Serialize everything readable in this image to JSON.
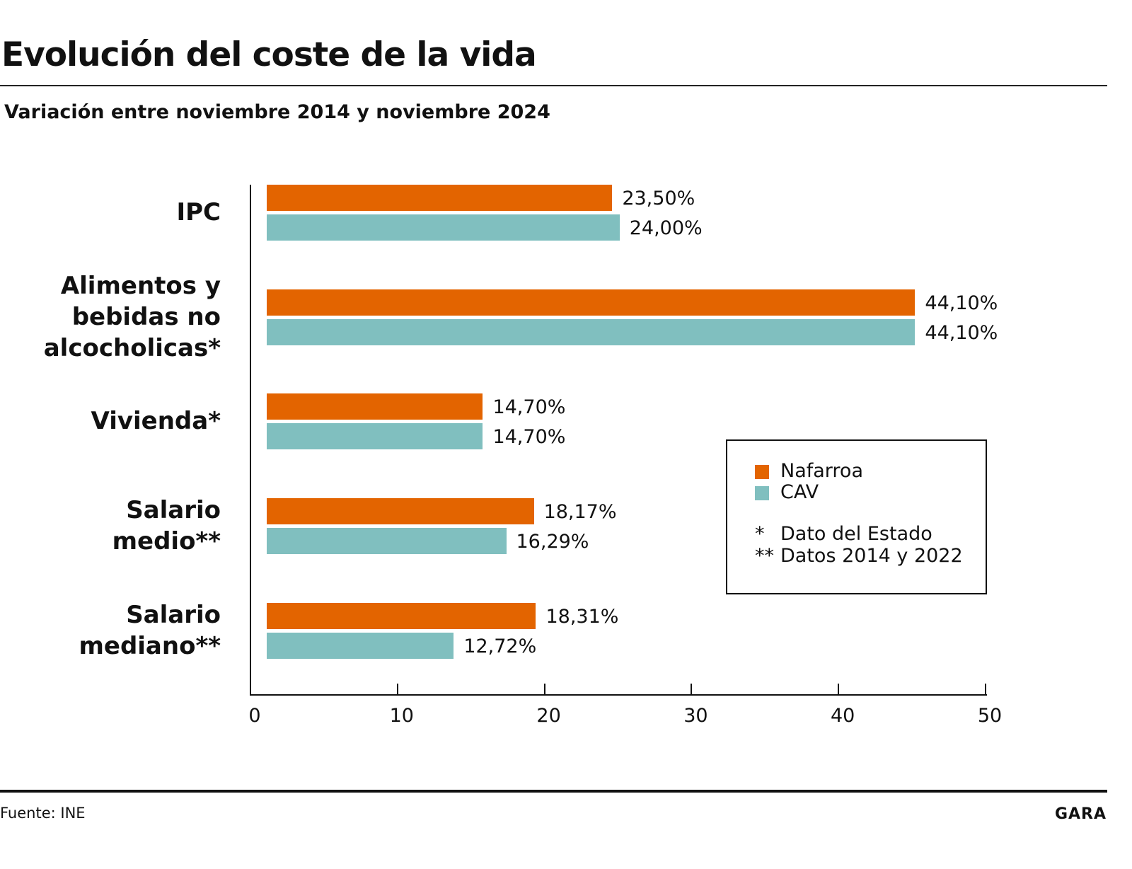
{
  "chart_data": {
    "type": "bar",
    "orientation": "horizontal",
    "title": "Evolución del coste de la vida",
    "subtitle": "Variación entre noviembre 2014 y noviembre 2024",
    "categories": [
      "IPC",
      "Alimentos y bebidas no alcocholicas*",
      "Vivienda*",
      "Salario medio**",
      "Salario mediano**"
    ],
    "category_lines": [
      [
        "IPC"
      ],
      [
        "Alimentos y",
        "bebidas no",
        "alcocholicas*"
      ],
      [
        "Vivienda*"
      ],
      [
        "Salario",
        "medio**"
      ],
      [
        "Salario",
        "mediano**"
      ]
    ],
    "series": [
      {
        "name": "Nafarroa",
        "color": "#E36400",
        "values": [
          23.5,
          44.1,
          14.7,
          18.17,
          18.31
        ],
        "labels": [
          "23,50%",
          "44,10%",
          "14,70%",
          "18,17%",
          "18,31%"
        ]
      },
      {
        "name": "CAV",
        "color": "#80BFBF",
        "values": [
          24.0,
          44.1,
          14.7,
          16.29,
          12.72
        ],
        "labels": [
          "24,00%",
          "44,10%",
          "14,70%",
          "16,29%",
          "12,72%"
        ]
      }
    ],
    "xlim": [
      0,
      50
    ],
    "xticks": [
      "0",
      "10",
      "20",
      "30",
      "40",
      "50"
    ],
    "grid": false,
    "legend": {
      "placement": "bottom-right",
      "notes": [
        {
          "mark": "*",
          "text": "Dato del Estado"
        },
        {
          "mark": "**",
          "text": "Datos 2014 y 2022"
        }
      ]
    }
  },
  "footer": {
    "source": "Fuente: INE",
    "brand": "GARA"
  }
}
